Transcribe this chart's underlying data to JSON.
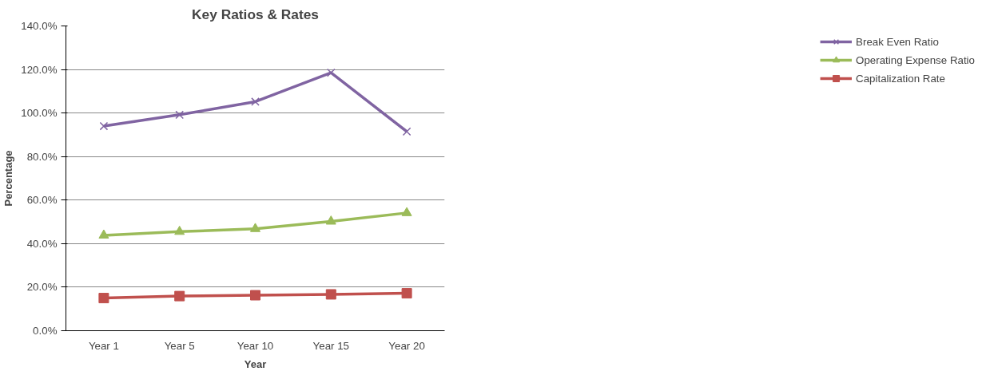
{
  "chart_data": {
    "type": "line",
    "title": "Key Ratios & Rates",
    "xlabel": "Year",
    "ylabel": "Percentage",
    "categories": [
      "Year 1",
      "Year 5",
      "Year 10",
      "Year 15",
      "Year 20"
    ],
    "series": [
      {
        "name": "Break Even Ratio",
        "color": "#8064a2",
        "marker": "cross",
        "values": [
          94.0,
          99.2,
          105.2,
          118.5,
          91.5
        ]
      },
      {
        "name": "Operating Expense Ratio",
        "color": "#9bbb59",
        "marker": "triangle",
        "values": [
          43.8,
          45.5,
          46.8,
          50.2,
          54.1
        ]
      },
      {
        "name": "Capitalization Rate",
        "color": "#c0504d",
        "marker": "square",
        "values": [
          15.0,
          15.9,
          16.3,
          16.7,
          17.2
        ]
      }
    ],
    "ylim": [
      0,
      140
    ],
    "yticks": [
      {
        "value": 0,
        "label": "0.0%"
      },
      {
        "value": 20,
        "label": "20.0%"
      },
      {
        "value": 40,
        "label": "40.0%"
      },
      {
        "value": 60,
        "label": "60.0%"
      },
      {
        "value": 80,
        "label": "80.0%"
      },
      {
        "value": 100,
        "label": "100.0%"
      },
      {
        "value": 120,
        "label": "120.0%"
      },
      {
        "value": 140,
        "label": "140.0%"
      }
    ],
    "grid": "y",
    "legend": "right",
    "line_style": "solid"
  }
}
